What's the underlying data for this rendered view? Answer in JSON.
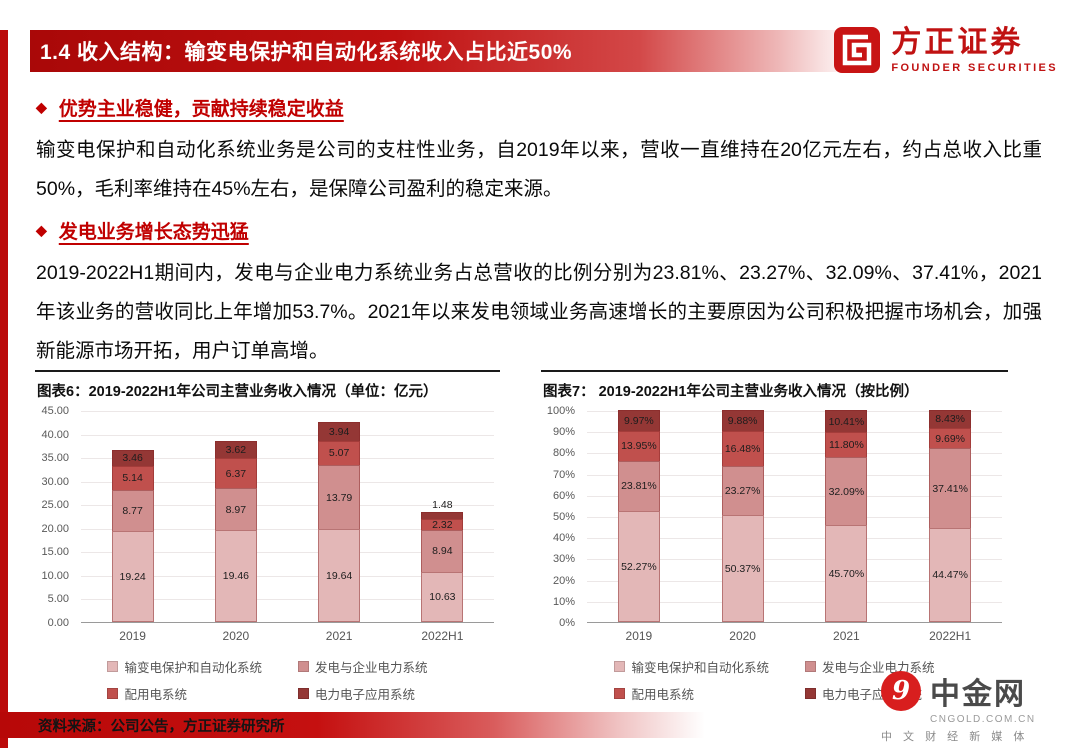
{
  "header": {
    "title": "1.4 收入结构：输变电保护和自动化系统收入占比近50%",
    "bar_color": "#c00000"
  },
  "logo": {
    "name": "方正证券",
    "subtitle": "FOUNDER SECURITIES",
    "color": "#c01212"
  },
  "sections": [
    {
      "bullet": "优势主业稳健，贡献持续稳定收益",
      "text": "输变电保护和自动化系统业务是公司的支柱性业务，自2019年以来，营收一直维持在20亿元左右，约占总收入比重50%，毛利率维持在45%左右，是保障公司盈利的稳定来源。"
    },
    {
      "bullet": "发电业务增长态势迅猛",
      "text": "2019-2022H1期间内，发电与企业电力系统业务占总营收的比例分别为23.81%、23.27%、32.09%、37.41%，2021年该业务的营收同比上年增加53.7%。2021年以来发电领域业务高速增长的主要原因为公司积极把握市场机会，加强新能源市场开拓，用户订单高增。"
    }
  ],
  "chart_data": [
    {
      "type": "bar",
      "stacked": true,
      "title": "图表6：2019-2022H1年公司主营业务收入情况（单位：亿元）",
      "categories": [
        "2019",
        "2020",
        "2021",
        "2022H1"
      ],
      "series": [
        {
          "name": "输变电保护和自动化系统",
          "color": "#e3b7b7",
          "values": [
            19.24,
            19.46,
            19.64,
            10.63
          ]
        },
        {
          "name": "发电与企业电力系统",
          "color": "#d08f8f",
          "values": [
            8.77,
            8.97,
            13.79,
            8.94
          ]
        },
        {
          "name": "配用电系统",
          "color": "#c0504d",
          "values": [
            5.14,
            6.37,
            5.07,
            2.32
          ]
        },
        {
          "name": "电力电子应用系统",
          "color": "#943735",
          "values": [
            3.46,
            3.62,
            3.94,
            1.48
          ]
        }
      ],
      "ylim": [
        0,
        45
      ],
      "ytick_step": 5,
      "ytick_format": "fixed2",
      "label_format": "fixed2",
      "grid": true,
      "legend_position": "bottom"
    },
    {
      "type": "bar",
      "stacked": true,
      "title": "图表7： 2019-2022H1年公司主营业务收入情况（按比例）",
      "categories": [
        "2019",
        "2020",
        "2021",
        "2022H1"
      ],
      "series": [
        {
          "name": "输变电保护和自动化系统",
          "color": "#e3b7b7",
          "values": [
            52.27,
            50.37,
            45.7,
            44.47
          ]
        },
        {
          "name": "发电与企业电力系统",
          "color": "#d08f8f",
          "values": [
            23.81,
            23.27,
            32.09,
            37.41
          ]
        },
        {
          "name": "配用电系统",
          "color": "#c0504d",
          "values": [
            13.95,
            16.48,
            11.8,
            9.69
          ]
        },
        {
          "name": "电力电子应用系统",
          "color": "#943735",
          "values": [
            9.97,
            9.88,
            10.41,
            8.43
          ]
        }
      ],
      "ylim": [
        0,
        100
      ],
      "ytick_step": 10,
      "ytick_format": "percent0",
      "label_format": "percent2",
      "grid": true,
      "legend_position": "bottom"
    }
  ],
  "footer": {
    "source": "资料来源：公司公告，方正证券研究所"
  },
  "watermark": {
    "initial": "9",
    "name": "中金网",
    "site": "CNGOLD.COM.CN",
    "tagline": "中 文 财 经 新 媒 体"
  }
}
